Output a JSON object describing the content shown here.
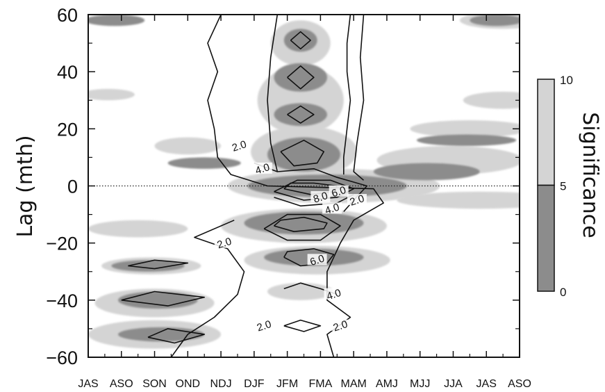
{
  "chart_data": {
    "type": "heatmap",
    "title": "",
    "xlabel": "",
    "ylabel": "Lag (mth)",
    "x": {
      "categories": [
        "JAS",
        "ASO",
        "SON",
        "OND",
        "NDJ",
        "DJF",
        "JFM",
        "FMA",
        "MAM",
        "AMJ",
        "MJJ",
        "JJA",
        "JAS",
        "ASO"
      ]
    },
    "y": {
      "ylim": [
        -60,
        60
      ],
      "ticks": [
        60,
        40,
        20,
        0,
        -20,
        -40,
        -60
      ],
      "tick_labels": [
        "60",
        "40",
        "20",
        "0",
        "−20",
        "−40",
        "−60"
      ]
    },
    "colorbar": {
      "label": "Significance",
      "ticks": [
        10,
        5,
        0
      ],
      "tick_labels": [
        "10",
        "5",
        "0"
      ],
      "bands": [
        {
          "from": 5,
          "to": 10,
          "color": "#d4d4d4"
        },
        {
          "from": 0,
          "to": 5,
          "color": "#8c8c8c"
        }
      ]
    },
    "reference_line": {
      "y": 0,
      "style": "dotted"
    },
    "contour_labels": [
      {
        "text": "2.0",
        "x": 4.55,
        "y": 14
      },
      {
        "text": "4.0",
        "x": 5.25,
        "y": 6
      },
      {
        "text": "8.0",
        "x": 7.0,
        "y": -4
      },
      {
        "text": "6.0",
        "x": 7.55,
        "y": -2
      },
      {
        "text": "4.0",
        "x": 7.35,
        "y": -8
      },
      {
        "text": "2.0",
        "x": 8.1,
        "y": -5
      },
      {
        "text": "2.0",
        "x": 4.1,
        "y": -20
      },
      {
        "text": "6.0",
        "x": 6.9,
        "y": -26
      },
      {
        "text": "4.0",
        "x": 7.4,
        "y": -38
      },
      {
        "text": "2.0",
        "x": 5.3,
        "y": -49
      },
      {
        "text": "2.0",
        "x": 7.6,
        "y": -49
      }
    ],
    "dark_regions": [
      {
        "x": 7.2,
        "y": 0,
        "rx": 2.4,
        "ry": 4
      },
      {
        "x": 6.5,
        "y": -13,
        "rx": 1.8,
        "ry": 4
      },
      {
        "x": 6.5,
        "y": 11,
        "rx": 1.1,
        "ry": 6
      },
      {
        "x": 6.4,
        "y": 25,
        "rx": 0.8,
        "ry": 4
      },
      {
        "x": 6.4,
        "y": 38,
        "rx": 0.8,
        "ry": 5
      },
      {
        "x": 6.4,
        "y": 51,
        "rx": 0.5,
        "ry": 4
      },
      {
        "x": 6.8,
        "y": -25,
        "rx": 1.5,
        "ry": 3
      },
      {
        "x": 2.1,
        "y": -40,
        "rx": 1.2,
        "ry": 3
      },
      {
        "x": 1.8,
        "y": -28,
        "rx": 1.1,
        "ry": 2
      },
      {
        "x": 2.2,
        "y": -52,
        "rx": 1.3,
        "ry": 2.5
      },
      {
        "x": 3.5,
        "y": 8,
        "rx": 1.1,
        "ry": 2
      },
      {
        "x": 10.2,
        "y": 5,
        "rx": 1.6,
        "ry": 3
      },
      {
        "x": 11.4,
        "y": 16,
        "rx": 1.5,
        "ry": 2
      },
      {
        "x": 12.3,
        "y": 58,
        "rx": 0.8,
        "ry": 2
      },
      {
        "x": 0.8,
        "y": 58,
        "rx": 0.9,
        "ry": 2
      }
    ],
    "light_regions": [
      {
        "x": 7.4,
        "y": 0,
        "rx": 3.2,
        "ry": 6
      },
      {
        "x": 6.5,
        "y": -14,
        "rx": 2.5,
        "ry": 6
      },
      {
        "x": 6.5,
        "y": 12,
        "rx": 1.6,
        "ry": 9
      },
      {
        "x": 6.4,
        "y": 30,
        "rx": 1.3,
        "ry": 12
      },
      {
        "x": 6.4,
        "y": 50,
        "rx": 0.9,
        "ry": 8
      },
      {
        "x": 6.9,
        "y": -26,
        "rx": 2.2,
        "ry": 5
      },
      {
        "x": 2.0,
        "y": -41,
        "rx": 1.8,
        "ry": 5
      },
      {
        "x": 2.0,
        "y": -52,
        "rx": 2.0,
        "ry": 5
      },
      {
        "x": 1.9,
        "y": -28,
        "rx": 1.5,
        "ry": 3
      },
      {
        "x": 6.4,
        "y": -37,
        "rx": 1.0,
        "ry": 3
      },
      {
        "x": 10.9,
        "y": 9,
        "rx": 2.2,
        "ry": 5
      },
      {
        "x": 11.5,
        "y": 20,
        "rx": 1.8,
        "ry": 3
      },
      {
        "x": 11.8,
        "y": -5,
        "rx": 2.5,
        "ry": 3
      },
      {
        "x": 1.5,
        "y": -15,
        "rx": 1.5,
        "ry": 3
      },
      {
        "x": 12.5,
        "y": 30,
        "rx": 1.2,
        "ry": 3
      },
      {
        "x": 12.5,
        "y": 58,
        "rx": 1.3,
        "ry": 3
      },
      {
        "x": 0.6,
        "y": 32,
        "rx": 0.8,
        "ry": 2
      },
      {
        "x": 3.0,
        "y": 14,
        "rx": 1.0,
        "ry": 3
      }
    ],
    "contours": [
      {
        "level": "2.0",
        "points": [
          [
            4.0,
            60
          ],
          [
            3.6,
            50
          ],
          [
            3.9,
            40
          ],
          [
            3.6,
            30
          ],
          [
            3.8,
            20
          ],
          [
            3.9,
            10
          ],
          [
            4.3,
            4
          ],
          [
            5.4,
            0
          ],
          [
            8.6,
            -1
          ],
          [
            8.9,
            -6
          ],
          [
            8.0,
            -12
          ],
          [
            7.6,
            -20
          ],
          [
            7.2,
            -30
          ],
          [
            7.2,
            -40
          ],
          [
            7.9,
            -46
          ],
          [
            7.2,
            -52
          ],
          [
            7.4,
            -60
          ]
        ]
      },
      {
        "level": "2.0",
        "points": [
          [
            5.7,
            60
          ],
          [
            5.5,
            45
          ],
          [
            5.4,
            30
          ],
          [
            5.5,
            15
          ],
          [
            5.7,
            5
          ]
        ]
      },
      {
        "level": "2.0",
        "points": [
          [
            7.9,
            60
          ],
          [
            7.8,
            50
          ],
          [
            7.8,
            40
          ],
          [
            7.9,
            30
          ],
          [
            7.8,
            20
          ],
          [
            7.7,
            10
          ],
          [
            7.7,
            4
          ]
        ]
      },
      {
        "level": "2.0",
        "points": [
          [
            8.3,
            60
          ],
          [
            8.2,
            45
          ],
          [
            8.3,
            30
          ],
          [
            8.1,
            15
          ],
          [
            8.0,
            5
          ],
          [
            8.3,
            2
          ]
        ]
      },
      {
        "level": "2.0",
        "points": [
          [
            2.5,
            -60
          ],
          [
            3.0,
            -52
          ],
          [
            3.8,
            -46
          ],
          [
            4.5,
            -38
          ],
          [
            4.7,
            -30
          ],
          [
            4.2,
            -22
          ],
          [
            3.2,
            -18
          ],
          [
            4.4,
            -12
          ]
        ]
      },
      {
        "level": "4.0",
        "points": [
          [
            5.0,
            8
          ],
          [
            5.7,
            5
          ],
          [
            6.8,
            6
          ],
          [
            7.5,
            3
          ],
          [
            8.4,
            0
          ],
          [
            8.0,
            -5
          ],
          [
            7.7,
            -9
          ]
        ]
      },
      {
        "level": "4.0",
        "points": [
          [
            5.6,
            -4
          ],
          [
            6.4,
            -7
          ],
          [
            7.5,
            -6
          ],
          [
            8.0,
            -3
          ]
        ]
      },
      {
        "level": "4.0",
        "points": [
          [
            5.3,
            -15
          ],
          [
            6.0,
            -19
          ],
          [
            7.0,
            -19
          ],
          [
            7.6,
            -14
          ],
          [
            7.0,
            -10
          ],
          [
            6.0,
            -10
          ],
          [
            5.3,
            -15
          ]
        ]
      },
      {
        "level": "4.0",
        "points": [
          [
            5.9,
            -36
          ],
          [
            6.4,
            -34
          ],
          [
            7.0,
            -36
          ],
          [
            7.5,
            -38
          ]
        ]
      },
      {
        "level": "6.0",
        "points": [
          [
            5.9,
            -25
          ],
          [
            6.4,
            -28
          ],
          [
            7.2,
            -27
          ],
          [
            7.4,
            -24
          ],
          [
            6.8,
            -22
          ],
          [
            6.0,
            -23
          ],
          [
            5.9,
            -25
          ]
        ]
      },
      {
        "level": "6.0",
        "points": [
          [
            5.6,
            -2
          ],
          [
            6.5,
            -5
          ],
          [
            7.5,
            -4
          ],
          [
            8.0,
            -1
          ],
          [
            7.3,
            2
          ],
          [
            6.3,
            2
          ],
          [
            5.6,
            -2
          ]
        ]
      },
      {
        "level": "8.0",
        "points": [
          [
            5.9,
            -1
          ],
          [
            6.7,
            -3
          ],
          [
            7.4,
            -2
          ],
          [
            7.5,
            0
          ],
          [
            6.8,
            1
          ],
          [
            6.1,
            1
          ],
          [
            5.9,
            -1
          ]
        ]
      },
      {
        "level": "6.0",
        "points": [
          [
            5.6,
            -14
          ],
          [
            6.2,
            -16
          ],
          [
            7.1,
            -15
          ],
          [
            7.2,
            -13
          ],
          [
            6.5,
            -11
          ],
          [
            5.8,
            -12
          ],
          [
            5.6,
            -14
          ]
        ]
      },
      {
        "level": "4.0",
        "points": [
          [
            5.8,
            12
          ],
          [
            6.5,
            16
          ],
          [
            7.1,
            12
          ],
          [
            6.9,
            8
          ],
          [
            6.2,
            7
          ],
          [
            5.8,
            12
          ]
        ]
      },
      {
        "level": "4.0",
        "points": [
          [
            6.0,
            25
          ],
          [
            6.4,
            28
          ],
          [
            6.8,
            25
          ],
          [
            6.4,
            22
          ],
          [
            6.0,
            25
          ]
        ]
      },
      {
        "level": "4.0",
        "points": [
          [
            6.0,
            38
          ],
          [
            6.4,
            42
          ],
          [
            6.8,
            38
          ],
          [
            6.4,
            34
          ],
          [
            6.0,
            38
          ]
        ]
      },
      {
        "level": "4.0",
        "points": [
          [
            6.1,
            51
          ],
          [
            6.4,
            54
          ],
          [
            6.7,
            51
          ],
          [
            6.4,
            48
          ],
          [
            6.1,
            51
          ]
        ]
      },
      {
        "level": "4.0",
        "points": [
          [
            1.0,
            -40
          ],
          [
            2.0,
            -37
          ],
          [
            3.5,
            -39
          ],
          [
            2.4,
            -42
          ],
          [
            1.0,
            -40
          ]
        ]
      },
      {
        "level": "4.0",
        "points": [
          [
            1.2,
            -28
          ],
          [
            2.0,
            -26
          ],
          [
            3.0,
            -27
          ],
          [
            2.0,
            -29
          ],
          [
            1.2,
            -28
          ]
        ]
      },
      {
        "level": "4.0",
        "points": [
          [
            1.8,
            -53
          ],
          [
            2.4,
            -50
          ],
          [
            3.5,
            -52
          ],
          [
            2.6,
            -55
          ],
          [
            1.8,
            -53
          ]
        ]
      },
      {
        "level": "4.0",
        "points": [
          [
            5.9,
            -49
          ],
          [
            6.4,
            -47
          ],
          [
            7.0,
            -49
          ],
          [
            6.5,
            -51
          ],
          [
            5.9,
            -49
          ]
        ]
      }
    ]
  }
}
